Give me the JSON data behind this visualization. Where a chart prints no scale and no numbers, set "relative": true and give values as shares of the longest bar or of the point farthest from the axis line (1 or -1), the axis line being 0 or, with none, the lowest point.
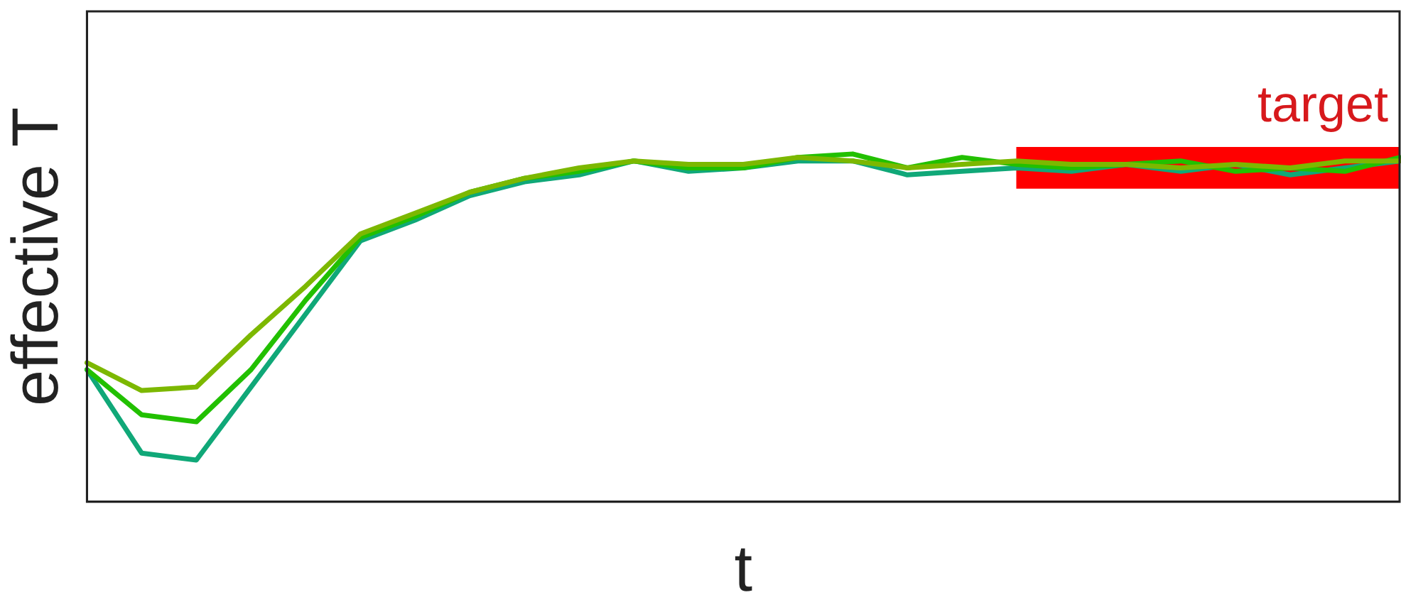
{
  "chart_data": {
    "type": "line",
    "xlabel": "t",
    "ylabel": "effective T",
    "relative": true,
    "grid": false,
    "legend": false,
    "marker": "none",
    "line_style": "solid",
    "categories": [
      null,
      null,
      null,
      null,
      null,
      null,
      null,
      null,
      null,
      null,
      null,
      null,
      null,
      null,
      null,
      null,
      null,
      null,
      null,
      null,
      null,
      null,
      null,
      null,
      null
    ],
    "series": [
      {
        "color": "#7cb800",
        "values": [
          0.4,
          0.32,
          0.33,
          0.48,
          0.62,
          0.77,
          0.83,
          0.89,
          0.93,
          0.96,
          0.98,
          0.97,
          0.97,
          0.99,
          0.98,
          0.96,
          0.97,
          0.98,
          0.97,
          0.97,
          0.96,
          0.97,
          0.96,
          0.98,
          0.98
        ]
      },
      {
        "color": "#22c000",
        "values": [
          0.38,
          0.25,
          0.23,
          0.38,
          0.58,
          0.76,
          0.82,
          0.89,
          0.93,
          0.95,
          0.98,
          0.96,
          0.96,
          0.99,
          1.0,
          0.96,
          0.99,
          0.97,
          0.96,
          0.97,
          0.98,
          0.95,
          0.96,
          0.95,
          0.99
        ]
      },
      {
        "color": "#10a878",
        "values": [
          0.38,
          0.14,
          0.12,
          0.33,
          0.54,
          0.75,
          0.81,
          0.88,
          0.92,
          0.94,
          0.98,
          0.95,
          0.96,
          0.98,
          0.98,
          0.94,
          0.95,
          0.96,
          0.95,
          0.97,
          0.95,
          0.97,
          0.94,
          0.96,
          0.98
        ]
      }
    ],
    "bands": [
      {
        "axis": "y",
        "from": 0.9,
        "to": 1.02,
        "label": "target",
        "color": "#ff0000"
      }
    ]
  }
}
